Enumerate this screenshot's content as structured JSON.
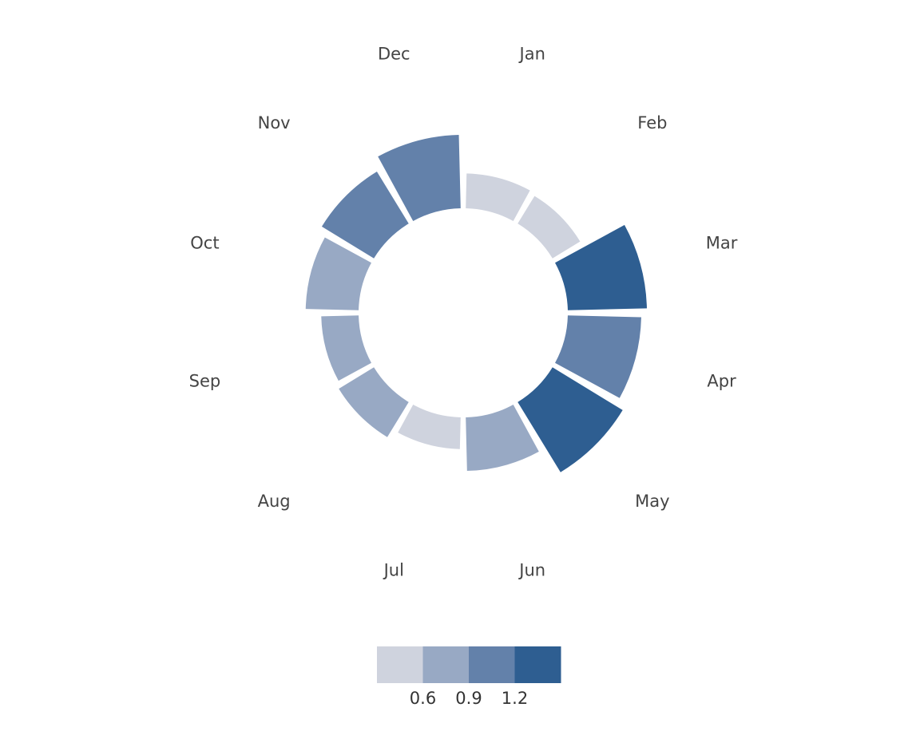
{
  "chart_data": {
    "type": "radial-bar",
    "title": "",
    "categories": [
      "Jan",
      "Feb",
      "Mar",
      "Apr",
      "May",
      "Jun",
      "Jul",
      "Aug",
      "Sep",
      "Oct",
      "Nov",
      "Dec"
    ],
    "values": [
      0.56,
      0.52,
      1.27,
      1.18,
      1.32,
      0.86,
      0.51,
      0.66,
      0.6,
      0.85,
      0.98,
      1.18
    ],
    "legend": {
      "type": "binned-color",
      "placement": "bottom",
      "tick_labels": [
        "0.6",
        "0.9",
        "1.2"
      ],
      "bin_edges": [
        0.3,
        0.6,
        0.9,
        1.2,
        1.5
      ],
      "colors": [
        "#cfd3de",
        "#98a9c4",
        "#6381aa",
        "#2e5e91"
      ]
    },
    "grid": false
  }
}
